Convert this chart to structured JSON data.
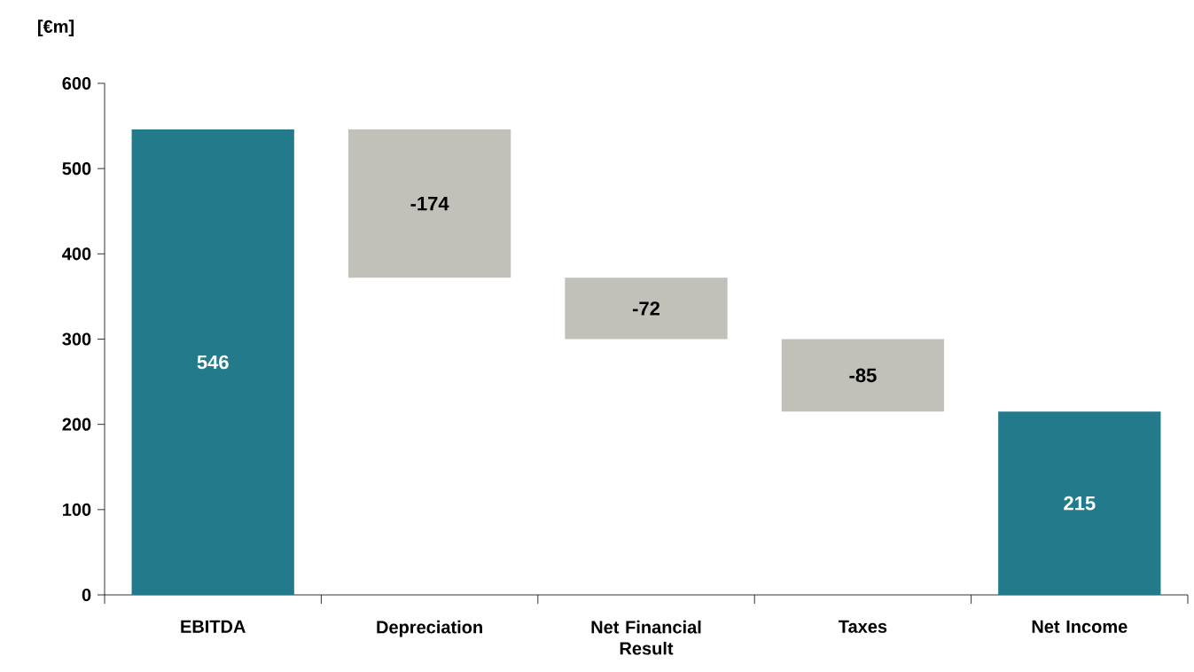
{
  "chart_data": {
    "type": "bar",
    "ylabel": "[€m]",
    "categories": [
      "EBITDA",
      "Depreciation",
      "Net Financial Result",
      "Taxes",
      "Net Income"
    ],
    "values": [
      546,
      -174,
      -72,
      -85,
      215
    ],
    "base": [
      0,
      546,
      372,
      300,
      0
    ],
    "colors": [
      "#237a8a",
      "#c2c1b9",
      "#c2c1b9",
      "#c2c1b9",
      "#237a8a"
    ],
    "ylim": [
      0,
      600
    ],
    "yticks": [
      0,
      100,
      200,
      300,
      400,
      500,
      600
    ],
    "data_labels": true
  }
}
